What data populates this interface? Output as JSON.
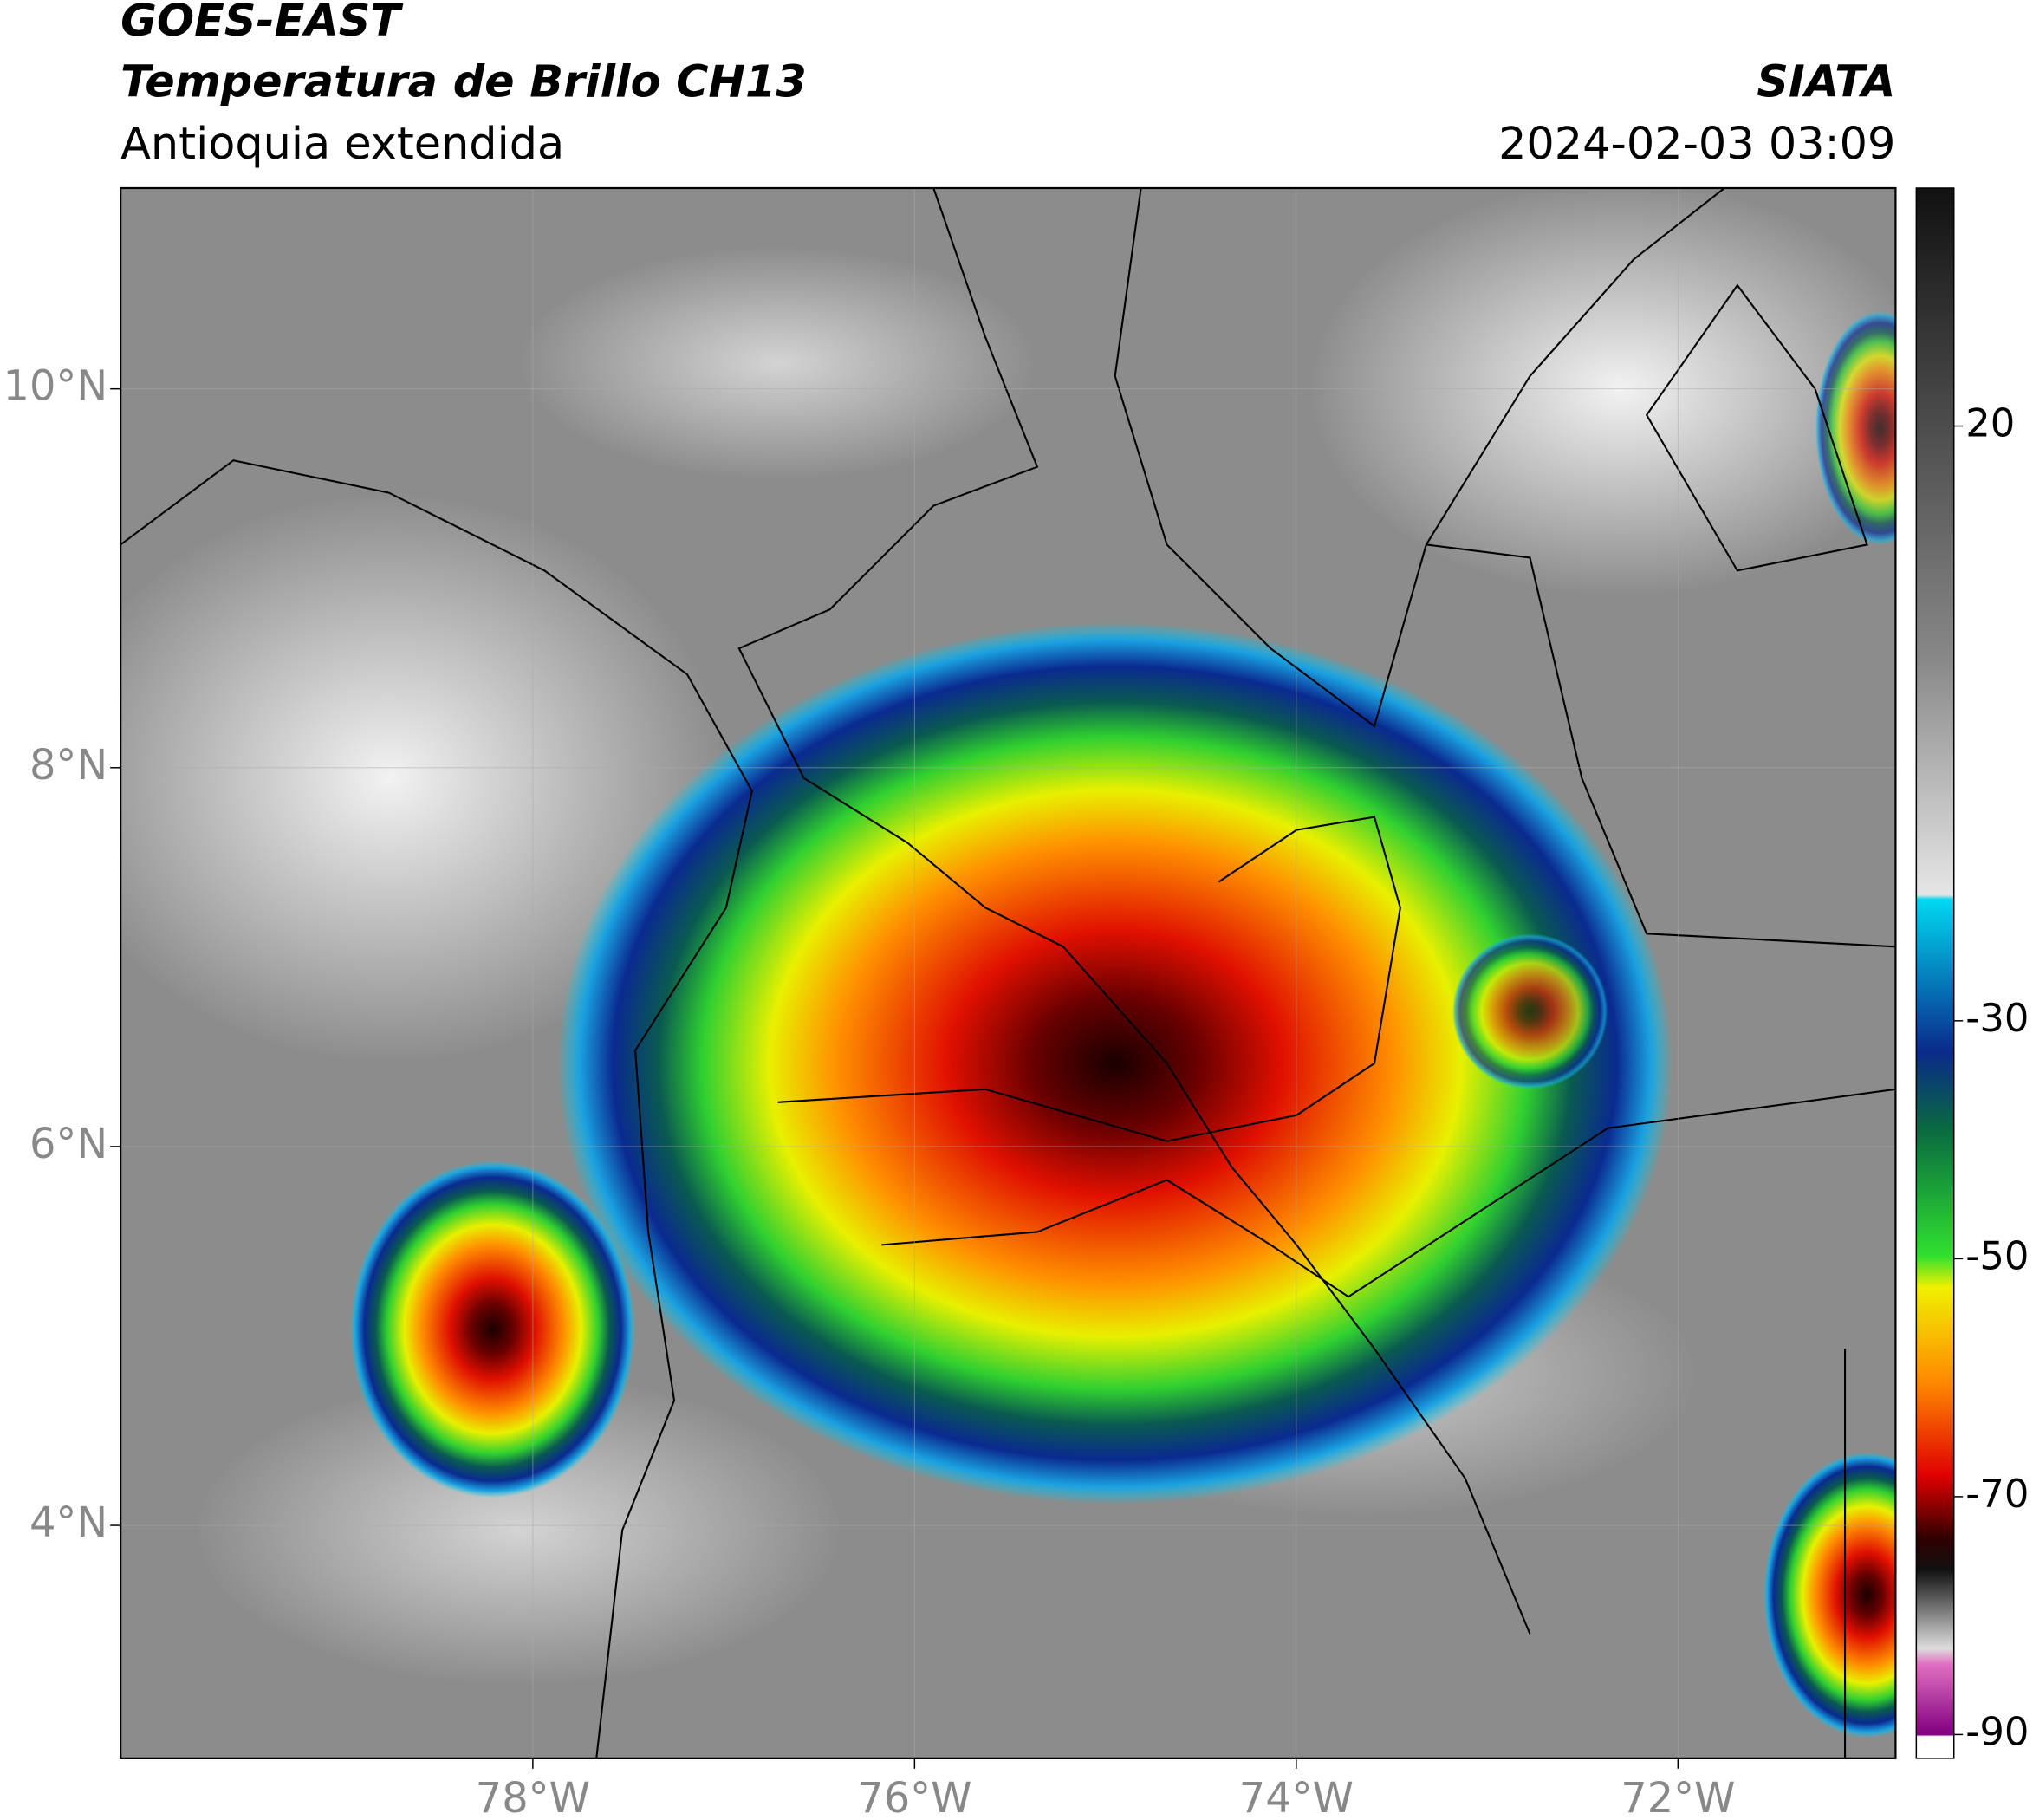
{
  "header": {
    "title": "GOES-EAST",
    "subtitle": "Temperatura de Brillo CH13",
    "region": "Antioquia extendida",
    "source": "SIATA",
    "datetime": "2024-02-03 03:09"
  },
  "map": {
    "lon_lim": [
      -80.16,
      -70.86
    ],
    "lat_lim": [
      2.77,
      11.06
    ],
    "lon_ticks": [
      {
        "value": -78,
        "label": "78°W"
      },
      {
        "value": -76,
        "label": "76°W"
      },
      {
        "value": -74,
        "label": "74°W"
      },
      {
        "value": -72,
        "label": "72°W"
      }
    ],
    "lat_ticks": [
      {
        "value": 4,
        "label": "4°N"
      },
      {
        "value": 6,
        "label": "6°N"
      },
      {
        "value": 8,
        "label": "8°N"
      },
      {
        "value": 10,
        "label": "10°N"
      }
    ]
  },
  "colorbar": {
    "lim": [
      -92,
      40
    ],
    "ticks": [
      20,
      -30,
      -50,
      -70,
      -90
    ]
  }
}
